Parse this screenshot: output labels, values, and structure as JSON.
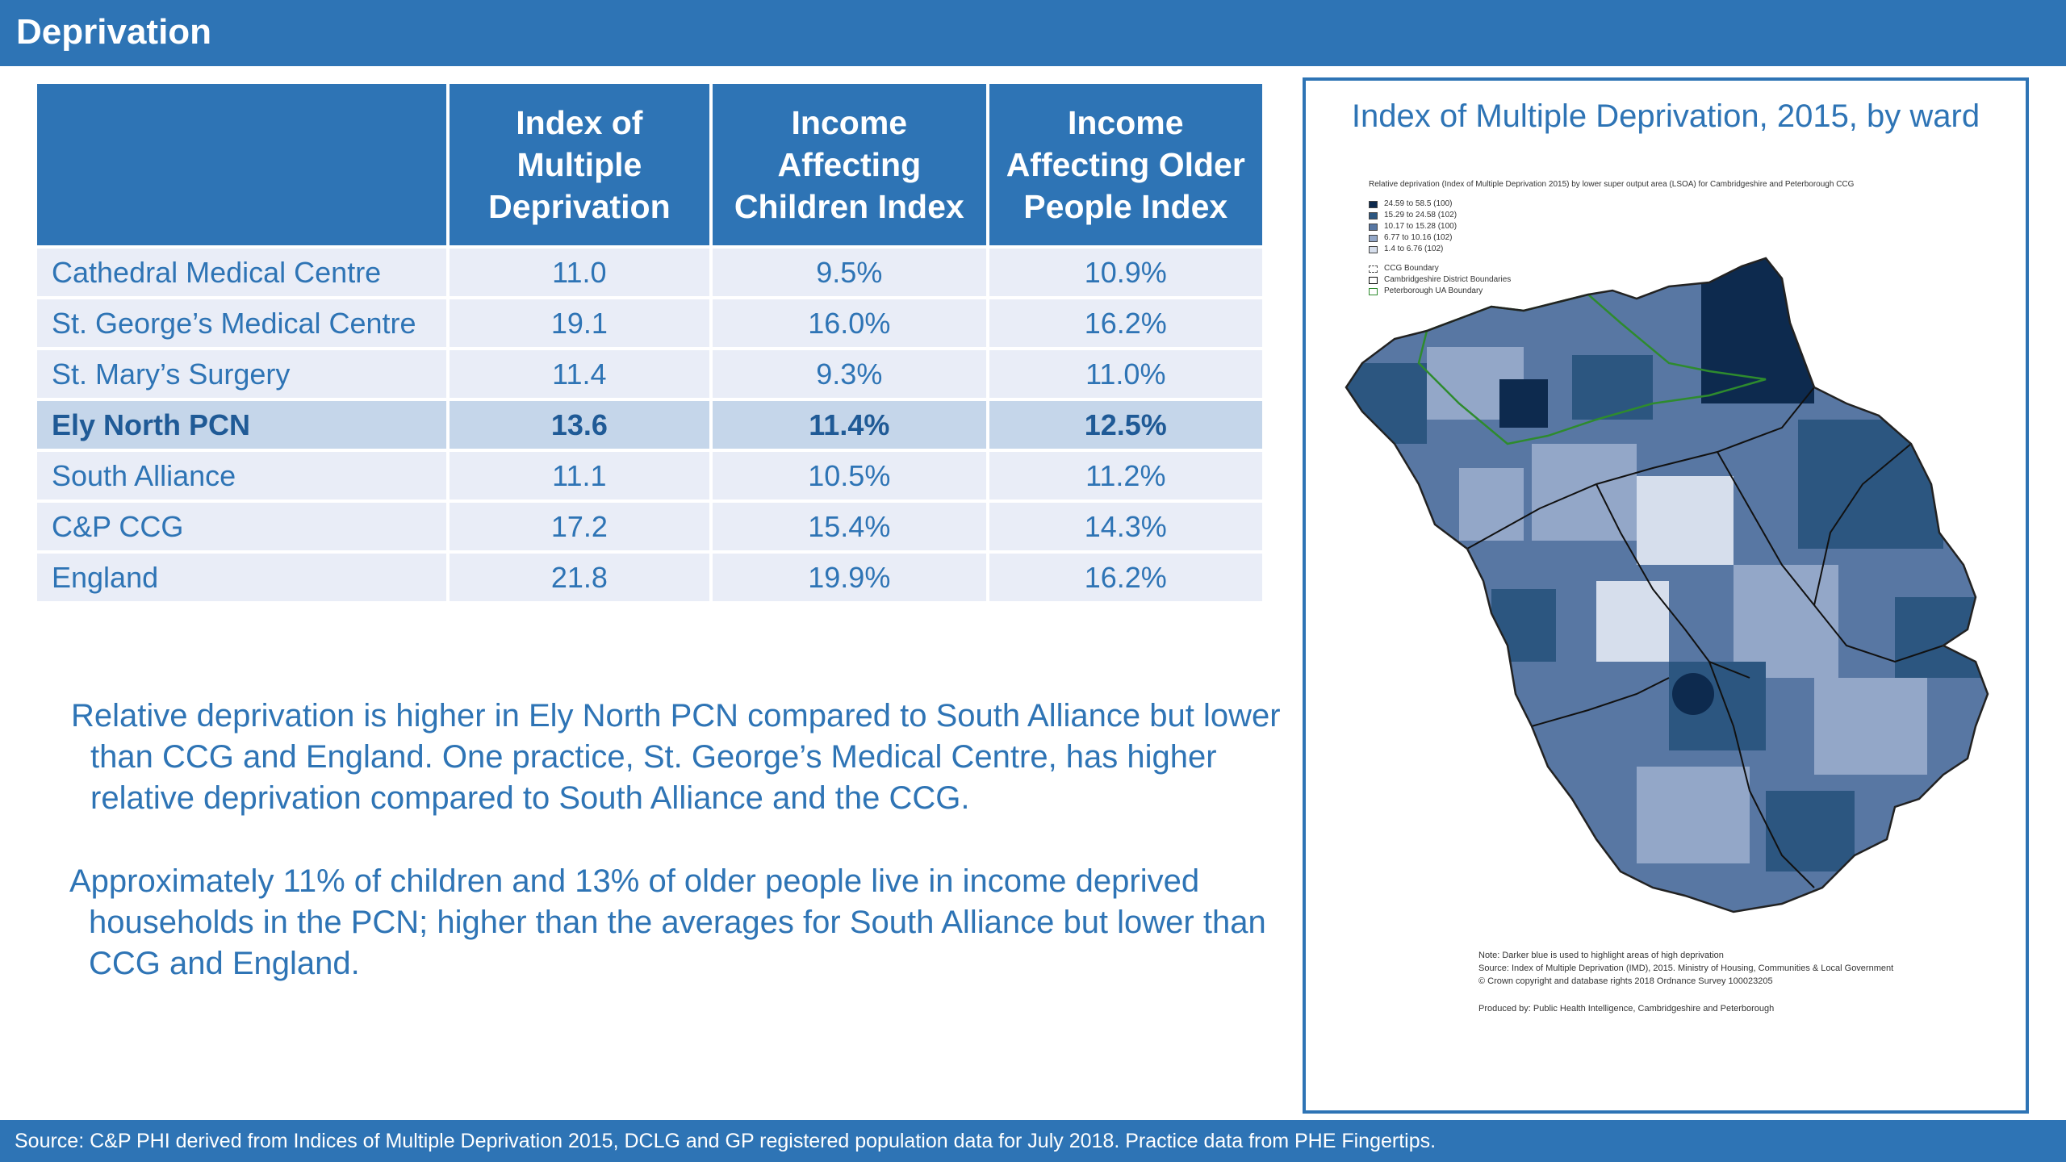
{
  "title": "Deprivation",
  "table": {
    "headers": [
      "",
      "Index of Multiple Deprivation",
      "Income Affecting Children Index",
      "Income Affecting Older People Index"
    ],
    "rows": [
      {
        "name": "Cathedral Medical Centre",
        "imd": "11.0",
        "idaci": "9.5%",
        "idaopi": "10.9%"
      },
      {
        "name": "St. George’s Medical Centre",
        "imd": "19.1",
        "idaci": "16.0%",
        "idaopi": "16.2%"
      },
      {
        "name": "St. Mary’s Surgery",
        "imd": "11.4",
        "idaci": "9.3%",
        "idaopi": "11.0%"
      },
      {
        "name": "Ely North PCN",
        "imd": "13.6",
        "idaci": "11.4%",
        "idaopi": "12.5%"
      },
      {
        "name": "South Alliance",
        "imd": "11.1",
        "idaci": "10.5%",
        "idaopi": "11.2%"
      },
      {
        "name": "C&P CCG",
        "imd": "17.2",
        "idaci": "15.4%",
        "idaopi": "14.3%"
      },
      {
        "name": "England",
        "imd": "21.8",
        "idaci": "19.9%",
        "idaopi": "16.2%"
      }
    ],
    "highlight_row": "Ely North PCN"
  },
  "summary": {
    "p1": "Relative deprivation is higher in Ely North PCN compared to South Alliance but lower than CCG and England. One practice, St. George’s Medical Centre, has higher relative deprivation compared to South Alliance and the CCG.",
    "p2": "Approximately 11% of children and 13% of older people live in income deprived households in the PCN; higher than the averages for South Alliance but lower than CCG and England."
  },
  "map": {
    "title": "Index of Multiple Deprivation, 2015, by ward",
    "legend_title": "Relative deprivation (Index of Multiple Deprivation 2015) by lower super output area (LSOA) for Cambridgeshire and Peterborough CCG",
    "legend_items": [
      {
        "label": "24.59 to 58.5   (100)",
        "color": "#0d2a4e"
      },
      {
        "label": "15.29 to 24.58  (102)",
        "color": "#2c5680"
      },
      {
        "label": "10.17 to 15.28  (100)",
        "color": "#5877a3"
      },
      {
        "label": "6.77 to 10.16  (102)",
        "color": "#93a7c8"
      },
      {
        "label": "1.4  to  6.76  (102)",
        "color": "#d6deec"
      }
    ],
    "boundary_items": [
      {
        "label": "CCG Boundary",
        "color": "#555555"
      },
      {
        "label": "Cambridgeshire District Boundaries",
        "color": "#111111"
      },
      {
        "label": "Peterborough UA Boundary",
        "color": "#2e8b2e"
      }
    ],
    "note": "Note: Darker blue is used to highlight areas of high deprivation",
    "source": "Source: Index of Multiple Deprivation (IMD), 2015. Ministry of Housing, Communities & Local Government",
    "copyright": "© Crown copyright and database rights 2018 Ordnance Survey 100023205",
    "produced": "Produced by: Public Health Intelligence, Cambridgeshire and Peterborough"
  },
  "footer": "Source: C&P PHI derived from Indices of Multiple Deprivation 2015, DCLG and GP registered population data for July 2018.  Practice data from PHE Fingertips."
}
